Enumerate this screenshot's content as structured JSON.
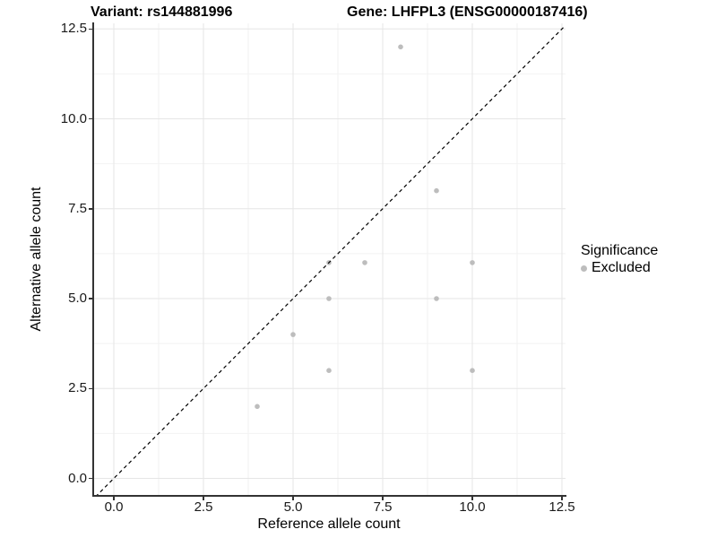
{
  "titles": {
    "variant": "Variant: rs144881996",
    "gene": "Gene: LHFPL3 (ENSG00000187416)"
  },
  "axes": {
    "x": {
      "label": "Reference allele count"
    },
    "y": {
      "label": "Alternative allele count"
    }
  },
  "legend": {
    "title": "Significance",
    "items": [
      {
        "label": "Excluded",
        "color": "#bdbdbd"
      }
    ]
  },
  "colors": {
    "point": "#bdbdbd",
    "grid_major": "#e6e6e6",
    "grid_minor": "#f2f2f2",
    "axis_line": "#333333",
    "reference_line": "#000000",
    "background": "#ffffff"
  },
  "chart_data": {
    "type": "scatter",
    "title": "Variant: rs144881996   Gene: LHFPL3 (ENSG00000187416)",
    "xlabel": "Reference allele count",
    "ylabel": "Alternative allele count",
    "xlim": [
      -0.58,
      12.6
    ],
    "ylim": [
      -0.51,
      12.66
    ],
    "x_ticks": [
      0,
      2.5,
      5,
      7.5,
      10,
      12.5
    ],
    "x_tick_labels": [
      "0.0",
      "2.5",
      "5.0",
      "7.5",
      "10.0",
      "12.5"
    ],
    "y_ticks": [
      0,
      2.5,
      5,
      7.5,
      10,
      12.5
    ],
    "y_tick_labels": [
      "0.0",
      "2.5",
      "5.0",
      "7.5",
      "10.0",
      "12.5"
    ],
    "x_minor_ticks": [
      1.25,
      3.75,
      6.25,
      8.75,
      11.25
    ],
    "y_minor_ticks": [
      1.25,
      3.75,
      6.25,
      8.75,
      11.25
    ],
    "grid": true,
    "legend_position": "right",
    "series": [
      {
        "name": "Excluded",
        "color": "#bdbdbd",
        "points": [
          [
            8,
            12
          ],
          [
            9,
            8
          ],
          [
            6,
            6
          ],
          [
            7,
            6
          ],
          [
            10,
            6
          ],
          [
            6,
            5
          ],
          [
            9,
            5
          ],
          [
            5,
            4
          ],
          [
            6,
            3
          ],
          [
            10,
            3
          ],
          [
            4,
            2
          ]
        ]
      }
    ],
    "reference_line": {
      "slope": 1,
      "intercept": 0,
      "style": "dashed",
      "color": "#000000"
    }
  }
}
